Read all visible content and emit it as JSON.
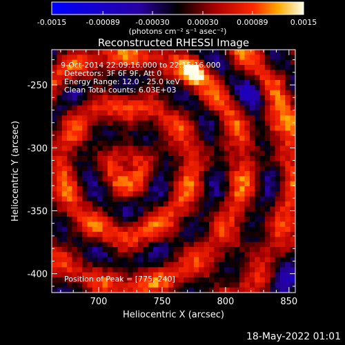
{
  "chart_data": {
    "type": "heatmap",
    "title": "Reconstructed RHESSI Image",
    "xlabel": "Heliocentric X (arcsec)",
    "ylabel": "Heliocentric Y (arcsec)",
    "xlim": [
      663,
      855
    ],
    "ylim": [
      -415,
      -222
    ],
    "x_ticks": [
      700,
      750,
      800,
      850
    ],
    "y_ticks": [
      -250,
      -300,
      -350,
      -400
    ],
    "x_tick_labels": [
      "700",
      "750",
      "800",
      "850"
    ],
    "y_tick_labels": [
      "-250",
      "-300",
      "-350",
      "-400"
    ],
    "colorbar": {
      "range": [
        -0.0015,
        0.0015
      ],
      "ticks": [
        -0.0015,
        -0.00089,
        -0.0003,
        0.0003,
        0.00089,
        0.0015
      ],
      "tick_labels": [
        "-0.0015",
        "-0.00089",
        "-0.00030",
        "0.00030",
        "0.00089",
        "0.0015"
      ],
      "unit_label": "(photons cm⁻² s⁻¹ asec⁻²)",
      "colors": [
        "#0000ff",
        "#000000",
        "#ff0000",
        "#ffb000",
        "#ffffff"
      ]
    },
    "annotations": {
      "time": "9-Oct-2014 22:09:16.000 to 22:15:16.000",
      "detectors": "Detectors: 3F 6F 9F, Att 0",
      "energy": "Energy Range: 12.0 - 25.0 keV",
      "clean": "Clean    Total counts: 6.03E+03",
      "peak": "Position of Peak = [775,-240]"
    },
    "peak": [
      775,
      -240
    ],
    "grid": false
  },
  "footer": {
    "timestamp": "18-May-2022 01:01"
  }
}
